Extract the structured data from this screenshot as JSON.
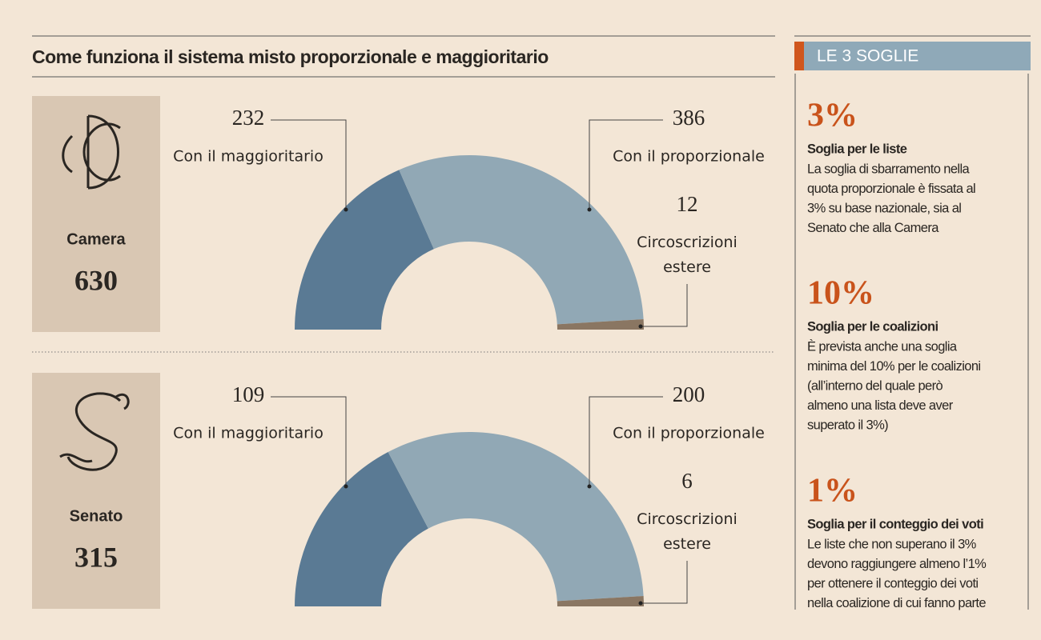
{
  "title": "Come funziona il sistema misto proporzionale e maggioritario",
  "chart_data": [
    {
      "type": "pie",
      "house": "Camera",
      "total": 630,
      "categories": [
        "Con il maggioritario",
        "Con il proporzionale",
        "Circoscrizioni estere"
      ],
      "values": [
        232,
        386,
        12
      ],
      "colors": [
        "#5a7a94",
        "#91a8b5",
        "#8a7662"
      ]
    },
    {
      "type": "pie",
      "house": "Senato",
      "total": 315,
      "categories": [
        "Con il maggioritario",
        "Con il proporzionale",
        "Circoscrizioni estere"
      ],
      "values": [
        109,
        200,
        6
      ],
      "colors": [
        "#5a7a94",
        "#91a8b5",
        "#8a7662"
      ]
    }
  ],
  "sidebar": {
    "header": "LE 3 SOGLIE",
    "items": [
      {
        "value": "3%",
        "title": "Soglia per le liste",
        "lines": [
          "La soglia di sbarramento nella",
          "quota proporzionale è fissata al",
          "3% su base nazionale, sia al",
          "Senato che alla Camera"
        ]
      },
      {
        "value": "10%",
        "title": "Soglia per le coalizioni",
        "lines": [
          "È prevista anche una soglia",
          "minima del 10% per le coalizioni",
          "(all’interno del quale però",
          "almeno una lista deve aver",
          "superato il 3%)"
        ]
      },
      {
        "value": "1%",
        "title": "Soglia per il conteggio dei voti",
        "lines": [
          "Le liste che non superano il 3%",
          "devono raggiungere almeno l’1%",
          "per ottenere il conteggio dei voti",
          "nella coalizione di cui fanno parte"
        ]
      }
    ]
  }
}
